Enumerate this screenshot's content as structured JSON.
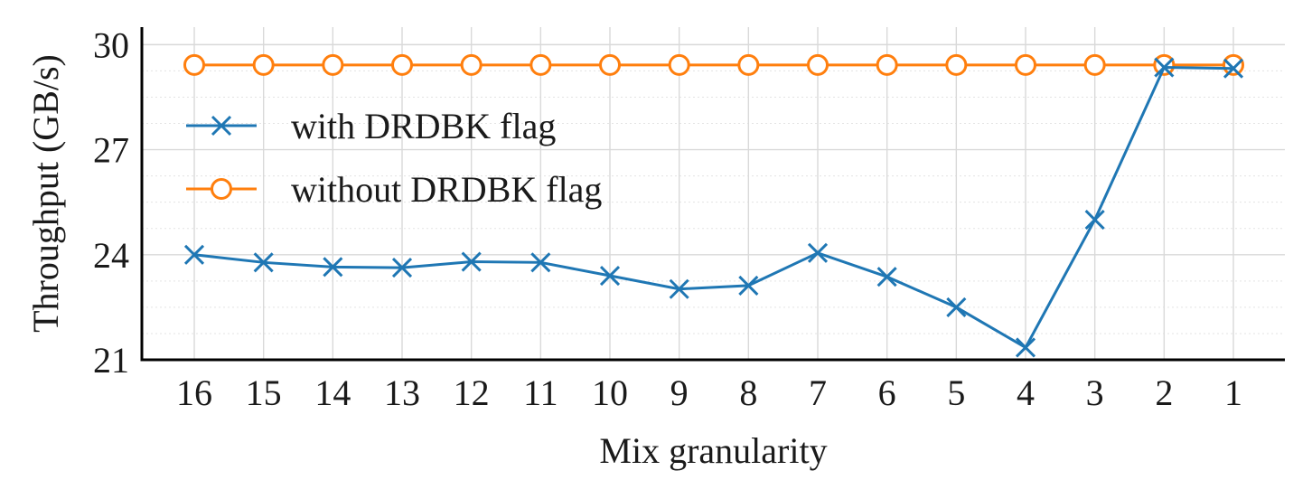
{
  "chart_data": {
    "type": "line",
    "title": "",
    "xlabel": "Mix granularity",
    "ylabel": "Throughput (GB/s)",
    "categories": [
      "16",
      "15",
      "14",
      "13",
      "12",
      "11",
      "10",
      "9",
      "8",
      "7",
      "6",
      "5",
      "4",
      "3",
      "2",
      "1"
    ],
    "ylim": [
      21,
      30.5
    ],
    "yticks": [
      21,
      24,
      27,
      30
    ],
    "grid": true,
    "legend_position": "upper-left",
    "series": [
      {
        "name": "with DRDBK flag",
        "marker": "x",
        "color": "#1f77b4",
        "values": [
          24.0,
          23.78,
          23.65,
          23.63,
          23.8,
          23.78,
          23.4,
          23.02,
          23.12,
          24.05,
          23.37,
          22.5,
          21.35,
          25.0,
          29.35,
          29.32
        ]
      },
      {
        "name": "without DRDBK flag",
        "marker": "circle",
        "color": "#ff7f0e",
        "values": [
          29.42,
          29.42,
          29.42,
          29.42,
          29.42,
          29.42,
          29.42,
          29.42,
          29.42,
          29.42,
          29.42,
          29.42,
          29.42,
          29.42,
          29.42,
          29.42
        ]
      }
    ]
  }
}
